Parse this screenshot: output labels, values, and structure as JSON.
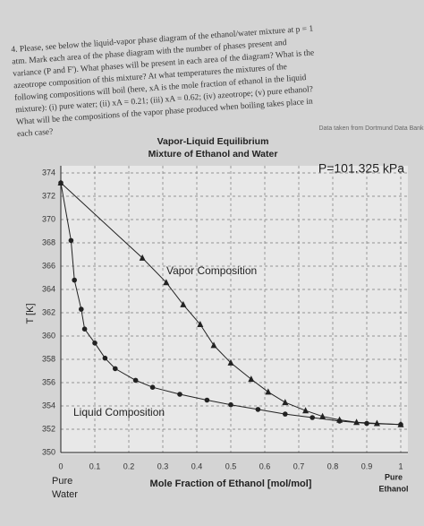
{
  "question": [
    "4. Please, see below the liquid-vapor phase diagram of the ethanol/water mixture at p = 1",
    "atm. Mark each area of the phase diagram with the number of phases present and",
    "variance (P and F'). What phases will be present in each area of the diagram? What is the",
    "azeotrope composition of this mixture? At what temperatures the mixtures of the",
    "following compositions will boil (here, xA is the mole fraction of ethanol in the liquid",
    "mixture): (i) pure water; (ii) xA = 0.21; (iii) xA = 0.62; (iv) azeotrope; (v) pure ethanol?",
    "What will be the compositions of the vapor phase produced when boiling takes place in",
    "each case?"
  ],
  "chart_data": {
    "type": "line",
    "source": "Data taken from Dortmund Data Bank",
    "title": [
      "Vapor-Liquid Equilibrium",
      "Mixture of Ethanol and Water"
    ],
    "ylabel": "T [K]",
    "xlabel": "Mole Fraction of Ethanol [mol/mol]",
    "left_end_label": [
      "Pure",
      "Water"
    ],
    "right_end_label": [
      "Pure",
      "Ethanol"
    ],
    "annotations": [
      "P=101.325 kPa",
      "Vapor Composition",
      "Liquid Composition"
    ],
    "xlim": [
      0,
      1
    ],
    "ylim": [
      350,
      374
    ],
    "xticks": [
      0,
      0.1,
      0.2,
      0.3,
      0.4,
      0.5,
      0.6,
      0.7,
      0.8,
      0.9,
      1
    ],
    "yticks": [
      350,
      352,
      354,
      356,
      358,
      360,
      362,
      364,
      366,
      368,
      370,
      372,
      374
    ],
    "grid": true,
    "series": [
      {
        "name": "Vapor Composition",
        "color": "#222222",
        "marker": "triangle",
        "x": [
          0,
          0.24,
          0.31,
          0.36,
          0.41,
          0.45,
          0.5,
          0.56,
          0.61,
          0.66,
          0.72,
          0.77,
          0.82,
          0.87,
          0.93,
          1
        ],
        "values": [
          373.15,
          366.7,
          364.6,
          362.7,
          361.0,
          359.2,
          357.7,
          356.3,
          355.2,
          354.3,
          353.6,
          353.1,
          352.8,
          352.6,
          352.5,
          352.4
        ]
      },
      {
        "name": "Liquid Composition",
        "color": "#222222",
        "marker": "circle",
        "x": [
          0,
          0.03,
          0.04,
          0.06,
          0.07,
          0.1,
          0.13,
          0.16,
          0.22,
          0.27,
          0.35,
          0.43,
          0.5,
          0.58,
          0.66,
          0.74,
          0.82,
          0.9,
          1
        ],
        "values": [
          373.15,
          368.2,
          364.8,
          362.3,
          360.6,
          359.4,
          358.1,
          357.2,
          356.2,
          355.6,
          355.0,
          354.5,
          354.1,
          353.7,
          353.3,
          353.0,
          352.7,
          352.5,
          352.4
        ]
      }
    ]
  }
}
